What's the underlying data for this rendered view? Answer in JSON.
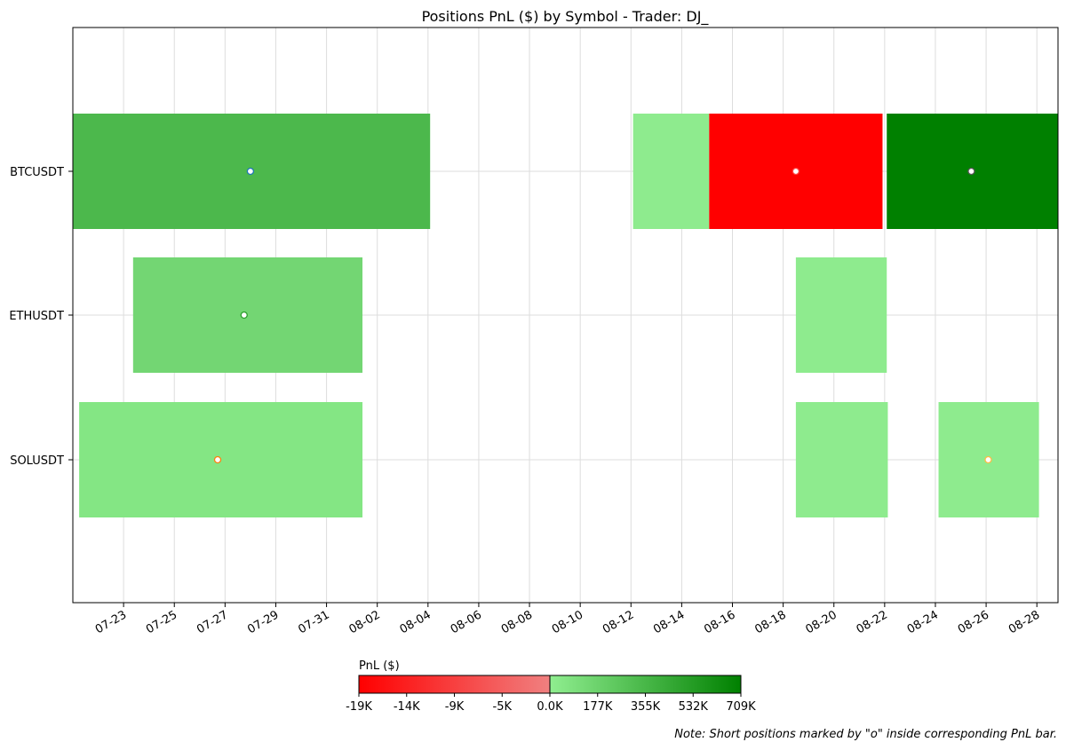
{
  "chart_data": {
    "type": "bar",
    "orientation": "horizontal-timeline",
    "title": "Positions PnL ($) by Symbol - Trader: DJ_",
    "symbols": [
      "BTCUSDT",
      "ETHUSDT",
      "SOLUSDT"
    ],
    "x_ticks": [
      "07-23",
      "07-25",
      "07-27",
      "07-29",
      "07-31",
      "08-02",
      "08-04",
      "08-06",
      "08-08",
      "08-10",
      "08-12",
      "08-14",
      "08-16",
      "08-18",
      "08-20",
      "08-22",
      "08-24",
      "08-26",
      "08-28"
    ],
    "x_tick_dates": [
      "2025-07-23",
      "2025-07-25",
      "2025-07-27",
      "2025-07-29",
      "2025-07-31",
      "2025-08-02",
      "2025-08-04",
      "2025-08-06",
      "2025-08-08",
      "2025-08-10",
      "2025-08-12",
      "2025-08-14",
      "2025-08-16",
      "2025-08-18",
      "2025-08-20",
      "2025-08-22",
      "2025-08-24",
      "2025-08-26",
      "2025-08-28"
    ],
    "xlim": [
      "2025-07-21T00:00",
      "2025-08-28T20:00"
    ],
    "grid": true,
    "positions": [
      {
        "symbol": "BTCUSDT",
        "start": "2025-07-21T00:00",
        "end": "2025-08-04T02:00",
        "color": "#4cb84c",
        "short": true,
        "marker": "2025-07-28T00:00",
        "marker_color": "#1f77b4"
      },
      {
        "symbol": "BTCUSDT",
        "start": "2025-08-12T02:00",
        "end": "2025-08-15T02:00",
        "color": "#8eeb8e",
        "short": false
      },
      {
        "symbol": "BTCUSDT",
        "start": "2025-08-15T02:00",
        "end": "2025-08-21T22:00",
        "color": "#ff0000",
        "short": true,
        "marker": "2025-08-18T12:00",
        "marker_color": "#ff4040"
      },
      {
        "symbol": "BTCUSDT",
        "start": "2025-08-22T02:00",
        "end": "2025-08-28T20:00",
        "color": "#008000",
        "short": true,
        "marker": "2025-08-25T10:00",
        "marker_color": "#555555"
      },
      {
        "symbol": "ETHUSDT",
        "start": "2025-07-23T09:00",
        "end": "2025-08-01T10:00",
        "color": "#73d673",
        "short": true,
        "marker": "2025-07-27T18:00",
        "marker_color": "#2ca02c"
      },
      {
        "symbol": "ETHUSDT",
        "start": "2025-08-18T12:00",
        "end": "2025-08-22T02:00",
        "color": "#8eeb8e",
        "short": false
      },
      {
        "symbol": "SOLUSDT",
        "start": "2025-07-21T06:00",
        "end": "2025-08-01T10:00",
        "color": "#84e684",
        "short": true,
        "marker": "2025-07-26T17:00",
        "marker_color": "#ff7f0e"
      },
      {
        "symbol": "SOLUSDT",
        "start": "2025-08-18T12:00",
        "end": "2025-08-22T03:00",
        "color": "#8eeb8e",
        "short": false
      },
      {
        "symbol": "SOLUSDT",
        "start": "2025-08-24T03:00",
        "end": "2025-08-28T02:00",
        "color": "#8eeb8e",
        "short": true,
        "marker": "2025-08-26T02:00",
        "marker_color": "#ffbb44"
      }
    ],
    "colorbar": {
      "label": "PnL ($)",
      "negative": {
        "from": "#ff0000",
        "to": "#f08080",
        "ticks": [
          "-19K",
          "-14K",
          "-9K",
          "-5K",
          "0.0K"
        ]
      },
      "positive": {
        "from": "#90ee90",
        "to": "#008000",
        "ticks": [
          "177K",
          "355K",
          "532K",
          "709K"
        ]
      }
    }
  },
  "note": "Note: Short positions marked by \"o\" inside corresponding PnL bar."
}
